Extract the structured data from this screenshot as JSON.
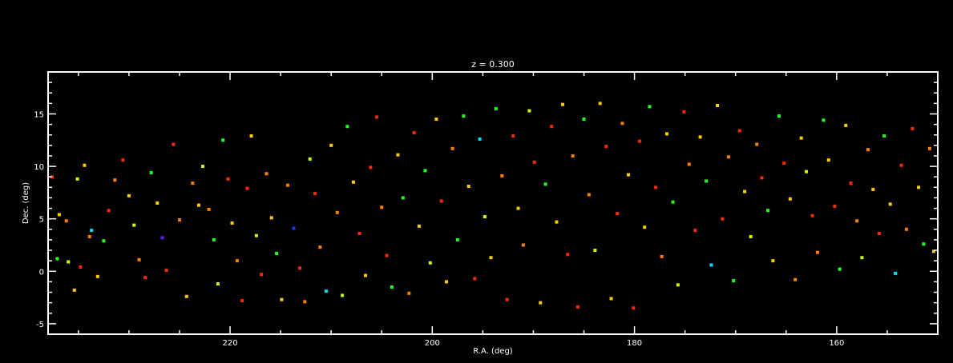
{
  "chart_data": {
    "type": "scatter",
    "title": "z = 0.300",
    "xlabel": "R.A. (deg)",
    "ylabel": "Dec. (deg)",
    "xlim": [
      238,
      150
    ],
    "ylim": [
      -6,
      19
    ],
    "xticks": [
      220,
      200,
      180,
      160
    ],
    "yticks": [
      -5,
      0,
      5,
      10,
      15
    ],
    "grid": false,
    "background": "#000000",
    "axis_color": "#ffffff",
    "colors": {
      "r": "#ff2a00",
      "o": "#ff7f00",
      "y": "#ffcc00",
      "l": "#c8ff00",
      "g": "#22ff22",
      "c": "#00ddff",
      "b": "#1a33ff",
      "p": "#6a1aff"
    },
    "points": [
      [
        237.6,
        9.0,
        "r"
      ],
      [
        236.9,
        5.4,
        "y"
      ],
      [
        236.2,
        4.8,
        "o"
      ],
      [
        235.1,
        8.8,
        "l"
      ],
      [
        234.4,
        10.1,
        "y"
      ],
      [
        233.7,
        3.9,
        "c"
      ],
      [
        237.1,
        1.2,
        "g"
      ],
      [
        236.0,
        0.9,
        "l"
      ],
      [
        235.4,
        -1.8,
        "y"
      ],
      [
        234.8,
        0.4,
        "r"
      ],
      [
        233.9,
        3.3,
        "o"
      ],
      [
        233.1,
        -0.5,
        "y"
      ],
      [
        232.5,
        2.9,
        "g"
      ],
      [
        232.0,
        5.8,
        "r"
      ],
      [
        231.4,
        8.7,
        "o"
      ],
      [
        230.6,
        10.6,
        "r"
      ],
      [
        230.0,
        7.2,
        "y"
      ],
      [
        229.5,
        4.4,
        "l"
      ],
      [
        229.0,
        1.1,
        "o"
      ],
      [
        228.4,
        -0.6,
        "r"
      ],
      [
        227.8,
        9.4,
        "g"
      ],
      [
        227.2,
        6.5,
        "y"
      ],
      [
        226.7,
        3.2,
        "p"
      ],
      [
        226.3,
        0.1,
        "r"
      ],
      [
        225.6,
        12.1,
        "r"
      ],
      [
        225.0,
        4.9,
        "o"
      ],
      [
        224.3,
        -2.4,
        "y"
      ],
      [
        223.7,
        8.4,
        "o"
      ],
      [
        223.1,
        6.3,
        "y"
      ],
      [
        222.7,
        10.0,
        "l"
      ],
      [
        222.1,
        5.9,
        "o"
      ],
      [
        221.6,
        3.0,
        "g"
      ],
      [
        221.2,
        -1.2,
        "l"
      ],
      [
        220.7,
        12.5,
        "g"
      ],
      [
        220.2,
        8.8,
        "r"
      ],
      [
        219.8,
        4.6,
        "y"
      ],
      [
        219.3,
        1.0,
        "o"
      ],
      [
        218.8,
        -2.8,
        "r"
      ],
      [
        218.3,
        7.9,
        "r"
      ],
      [
        217.9,
        12.9,
        "y"
      ],
      [
        217.4,
        3.4,
        "l"
      ],
      [
        216.9,
        -0.3,
        "r"
      ],
      [
        216.4,
        9.3,
        "o"
      ],
      [
        215.9,
        5.1,
        "y"
      ],
      [
        215.4,
        1.7,
        "g"
      ],
      [
        214.9,
        -2.7,
        "y"
      ],
      [
        214.3,
        8.2,
        "o"
      ],
      [
        213.7,
        4.1,
        "b"
      ],
      [
        213.1,
        0.3,
        "r"
      ],
      [
        212.6,
        -2.9,
        "o"
      ],
      [
        212.1,
        10.7,
        "l"
      ],
      [
        211.6,
        7.4,
        "r"
      ],
      [
        211.1,
        2.3,
        "o"
      ],
      [
        210.5,
        -1.9,
        "c"
      ],
      [
        210.0,
        12.0,
        "y"
      ],
      [
        209.4,
        5.6,
        "o"
      ],
      [
        208.9,
        -2.3,
        "l"
      ],
      [
        208.4,
        13.8,
        "g"
      ],
      [
        207.8,
        8.5,
        "y"
      ],
      [
        207.2,
        3.6,
        "r"
      ],
      [
        206.6,
        -0.4,
        "y"
      ],
      [
        206.1,
        9.9,
        "r"
      ],
      [
        205.5,
        14.7,
        "r"
      ],
      [
        205.0,
        6.1,
        "o"
      ],
      [
        204.5,
        1.5,
        "r"
      ],
      [
        204.0,
        -1.5,
        "g"
      ],
      [
        203.4,
        11.1,
        "y"
      ],
      [
        202.9,
        7.0,
        "g"
      ],
      [
        202.3,
        -2.1,
        "o"
      ],
      [
        201.8,
        13.2,
        "r"
      ],
      [
        201.3,
        4.3,
        "y"
      ],
      [
        200.7,
        9.6,
        "g"
      ],
      [
        200.2,
        0.8,
        "l"
      ],
      [
        199.6,
        14.5,
        "y"
      ],
      [
        199.1,
        6.7,
        "r"
      ],
      [
        198.6,
        -1.0,
        "y"
      ],
      [
        198.0,
        11.7,
        "o"
      ],
      [
        197.5,
        3.0,
        "g"
      ],
      [
        196.9,
        14.8,
        "g"
      ],
      [
        196.4,
        8.1,
        "y"
      ],
      [
        195.8,
        -0.7,
        "r"
      ],
      [
        195.3,
        12.6,
        "c"
      ],
      [
        194.8,
        5.2,
        "l"
      ],
      [
        194.2,
        1.3,
        "y"
      ],
      [
        193.7,
        15.5,
        "g"
      ],
      [
        193.1,
        9.1,
        "o"
      ],
      [
        192.6,
        -2.7,
        "r"
      ],
      [
        192.0,
        12.9,
        "r"
      ],
      [
        191.5,
        6.0,
        "y"
      ],
      [
        191.0,
        2.5,
        "o"
      ],
      [
        190.4,
        15.3,
        "l"
      ],
      [
        189.9,
        10.4,
        "r"
      ],
      [
        189.3,
        -3.0,
        "y"
      ],
      [
        188.8,
        8.3,
        "g"
      ],
      [
        188.2,
        13.8,
        "r"
      ],
      [
        187.7,
        4.7,
        "y"
      ],
      [
        187.1,
        15.9,
        "y"
      ],
      [
        186.6,
        1.6,
        "r"
      ],
      [
        186.1,
        11.0,
        "o"
      ],
      [
        185.6,
        -3.4,
        "r"
      ],
      [
        185.0,
        14.5,
        "g"
      ],
      [
        184.5,
        7.3,
        "o"
      ],
      [
        183.9,
        2.0,
        "l"
      ],
      [
        183.4,
        16.0,
        "y"
      ],
      [
        182.8,
        11.9,
        "r"
      ],
      [
        182.3,
        -2.6,
        "y"
      ],
      [
        181.7,
        5.5,
        "r"
      ],
      [
        181.2,
        14.1,
        "o"
      ],
      [
        180.6,
        9.2,
        "y"
      ],
      [
        180.1,
        -3.5,
        "r"
      ],
      [
        179.5,
        12.4,
        "r"
      ],
      [
        179.0,
        4.2,
        "y"
      ],
      [
        178.5,
        15.7,
        "g"
      ],
      [
        177.9,
        8.0,
        "r"
      ],
      [
        177.3,
        1.4,
        "o"
      ],
      [
        176.8,
        13.1,
        "y"
      ],
      [
        176.2,
        6.6,
        "g"
      ],
      [
        175.7,
        -1.3,
        "l"
      ],
      [
        175.1,
        15.2,
        "r"
      ],
      [
        174.6,
        10.2,
        "o"
      ],
      [
        174.0,
        3.9,
        "r"
      ],
      [
        173.5,
        12.8,
        "y"
      ],
      [
        172.9,
        8.6,
        "g"
      ],
      [
        172.4,
        0.6,
        "c"
      ],
      [
        171.8,
        15.8,
        "y"
      ],
      [
        171.3,
        5.0,
        "r"
      ],
      [
        170.7,
        10.9,
        "o"
      ],
      [
        170.2,
        -0.9,
        "g"
      ],
      [
        169.6,
        13.4,
        "r"
      ],
      [
        169.1,
        7.6,
        "y"
      ],
      [
        168.5,
        3.3,
        "l"
      ],
      [
        167.9,
        12.1,
        "o"
      ],
      [
        167.4,
        8.9,
        "r"
      ],
      [
        166.8,
        5.8,
        "g"
      ],
      [
        166.3,
        1.0,
        "y"
      ],
      [
        165.7,
        14.8,
        "g"
      ],
      [
        165.2,
        10.3,
        "r"
      ],
      [
        164.6,
        6.9,
        "y"
      ],
      [
        164.1,
        -0.8,
        "o"
      ],
      [
        163.5,
        12.7,
        "y"
      ],
      [
        163.0,
        9.5,
        "l"
      ],
      [
        162.4,
        5.3,
        "r"
      ],
      [
        161.9,
        1.8,
        "o"
      ],
      [
        161.3,
        14.4,
        "g"
      ],
      [
        160.8,
        10.6,
        "y"
      ],
      [
        160.2,
        6.2,
        "r"
      ],
      [
        159.7,
        0.2,
        "g"
      ],
      [
        159.1,
        13.9,
        "y"
      ],
      [
        158.6,
        8.4,
        "r"
      ],
      [
        158.0,
        4.8,
        "o"
      ],
      [
        157.5,
        1.3,
        "l"
      ],
      [
        156.9,
        11.6,
        "o"
      ],
      [
        156.4,
        7.8,
        "y"
      ],
      [
        155.8,
        3.6,
        "r"
      ],
      [
        155.3,
        12.9,
        "g"
      ],
      [
        154.7,
        6.4,
        "y"
      ],
      [
        154.2,
        -0.2,
        "c"
      ],
      [
        153.6,
        10.1,
        "r"
      ],
      [
        153.1,
        4.0,
        "o"
      ],
      [
        152.5,
        13.6,
        "r"
      ],
      [
        151.9,
        8.0,
        "y"
      ],
      [
        151.4,
        2.6,
        "g"
      ],
      [
        150.8,
        11.7,
        "o"
      ],
      [
        150.4,
        1.9,
        "y"
      ]
    ]
  }
}
